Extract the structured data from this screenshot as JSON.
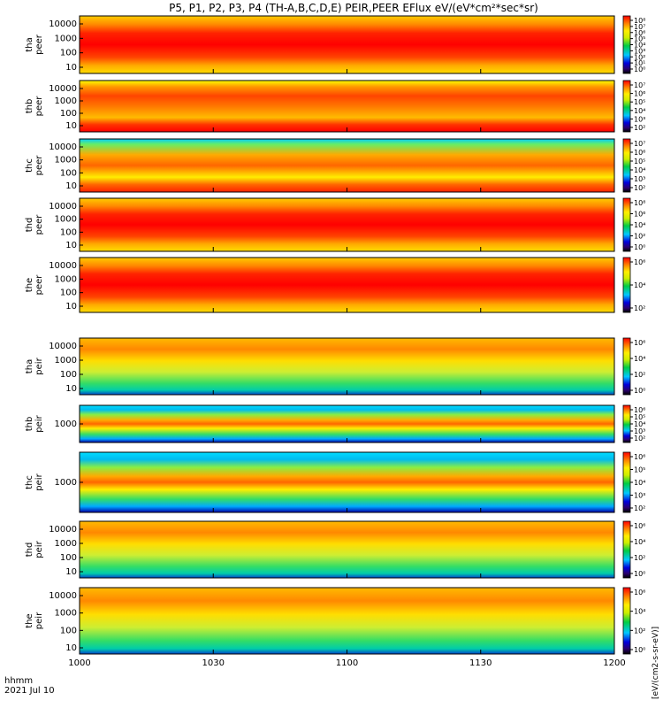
{
  "title": "P5, P1, P2, P3, P4 (TH-A,B,C,D,E) PEIR,PEER EFlux eV/(eV*cm²*sec*sr)",
  "colorbar_label": "[eV/(cm2-s-sr-eV)]",
  "footer": {
    "time_label": "hhmm",
    "date_label": "2021 Jul 10"
  },
  "colors": {
    "hot": "#ff0000",
    "warm": "#ff9900",
    "mid": "#33dd66",
    "cool": "#00e0ff",
    "cold": "#0000cc",
    "frame": "#000000"
  },
  "chart_data": {
    "type": "heatmap",
    "x_axis": {
      "ticks": [
        "1000",
        "1030",
        "1100",
        "1130",
        "1200"
      ]
    },
    "panels": [
      {
        "name": "thaPeer",
        "label": [
          "tha",
          "peer"
        ],
        "y_ticks": [
          "10000",
          "1000",
          "100",
          "10"
        ],
        "cbar_ticks": [
          "10⁸",
          "10⁷",
          "10⁶",
          "10⁵",
          "10⁴",
          "10³",
          "10²",
          "10¹",
          "10⁰"
        ]
      },
      {
        "name": "thbPeer",
        "label": [
          "thb",
          "peer"
        ],
        "y_ticks": [
          "10000",
          "1000",
          "100",
          "10"
        ],
        "cbar_ticks": [
          "10⁷",
          "10⁶",
          "10⁵",
          "10⁴",
          "10³",
          "10²"
        ]
      },
      {
        "name": "thcPeer",
        "label": [
          "thc",
          "peer"
        ],
        "y_ticks": [
          "10000",
          "1000",
          "100",
          "10"
        ],
        "cbar_ticks": [
          "10⁷",
          "10⁶",
          "10⁵",
          "10⁴",
          "10³",
          "10²"
        ]
      },
      {
        "name": "thdPeer",
        "label": [
          "thd",
          "peer"
        ],
        "y_ticks": [
          "10000",
          "1000",
          "100",
          "10"
        ],
        "cbar_ticks": [
          "10⁸",
          "10⁶",
          "10⁴",
          "10²",
          "10⁰"
        ]
      },
      {
        "name": "thePeer",
        "label": [
          "the",
          "peer"
        ],
        "y_ticks": [
          "10000",
          "1000",
          "100",
          "10"
        ],
        "cbar_ticks": [
          "10⁶",
          "10⁴",
          "10²"
        ]
      },
      {
        "name": "thaPeir",
        "label": [
          "tha",
          "peir"
        ],
        "y_ticks": [
          "10000",
          "1000",
          "100",
          "10"
        ],
        "cbar_ticks": [
          "10⁶",
          "10⁴",
          "10²",
          "10⁰"
        ]
      },
      {
        "name": "thbPeir",
        "label": [
          "thb",
          "peir"
        ],
        "y_ticks": [
          "1000"
        ],
        "cbar_ticks": [
          "10⁶",
          "10⁵",
          "10⁴",
          "10³",
          "10²"
        ]
      },
      {
        "name": "thcPeir",
        "label": [
          "thc",
          "peir"
        ],
        "y_ticks": [
          "1000"
        ],
        "cbar_ticks": [
          "10⁶",
          "10⁵",
          "10⁴",
          "10³",
          "10²"
        ]
      },
      {
        "name": "thdPeir",
        "label": [
          "thd",
          "peir"
        ],
        "y_ticks": [
          "10000",
          "1000",
          "100",
          "10"
        ],
        "cbar_ticks": [
          "10⁶",
          "10⁴",
          "10²",
          "10⁰"
        ]
      },
      {
        "name": "thePeir",
        "label": [
          "the",
          "peir"
        ],
        "y_ticks": [
          "10000",
          "1000",
          "100",
          "10"
        ],
        "cbar_ticks": [
          "10⁶",
          "10⁴",
          "10²",
          "10⁰"
        ]
      }
    ]
  }
}
